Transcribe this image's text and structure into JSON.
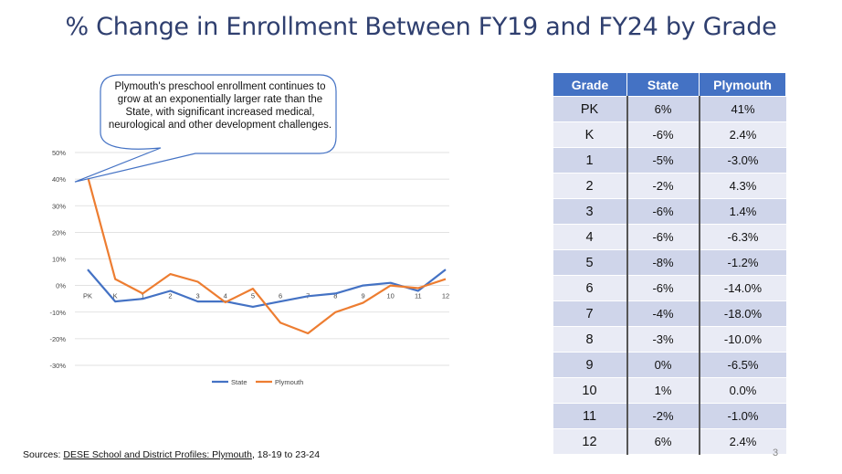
{
  "slide": {
    "title": "% Change in Enrollment Between FY19 and FY24 by Grade",
    "callout": "Plymouth's preschool enrollment continues to grow at an exponentially larger rate than the State, with significant increased medical, neurological and other  development challenges.",
    "source_prefix": "Sources: ",
    "source_link": "DESE School and District Profiles: Plymouth",
    "source_suffix": ", 18-19 to 23-24",
    "page_number": "3"
  },
  "table": {
    "headers": [
      "Grade",
      "State",
      "Plymouth"
    ],
    "rows": [
      [
        "PK",
        "6%",
        "41%"
      ],
      [
        "K",
        "-6%",
        "2.4%"
      ],
      [
        "1",
        "-5%",
        "-3.0%"
      ],
      [
        "2",
        "-2%",
        "4.3%"
      ],
      [
        "3",
        "-6%",
        "1.4%"
      ],
      [
        "4",
        "-6%",
        "-6.3%"
      ],
      [
        "5",
        "-8%",
        "-1.2%"
      ],
      [
        "6",
        "-6%",
        "-14.0%"
      ],
      [
        "7",
        "-4%",
        "-18.0%"
      ],
      [
        "8",
        "-3%",
        "-10.0%"
      ],
      [
        "9",
        "0%",
        "-6.5%"
      ],
      [
        "10",
        "1%",
        "0.0%"
      ],
      [
        "11",
        "-2%",
        "-1.0%"
      ],
      [
        "12",
        "6%",
        "2.4%"
      ]
    ]
  },
  "colors": {
    "state": "#4472c4",
    "plymouth": "#ed7d31",
    "header": "#4472c4"
  },
  "chart_data": {
    "type": "line",
    "categories": [
      "PK",
      "K",
      "1",
      "2",
      "3",
      "4",
      "5",
      "6",
      "7",
      "8",
      "9",
      "10",
      "11",
      "12"
    ],
    "series": [
      {
        "name": "State",
        "values": [
          6,
          -6,
          -5,
          -2,
          -6,
          -6,
          -8,
          -6,
          -4,
          -3,
          0,
          1,
          -2,
          6
        ]
      },
      {
        "name": "Plymouth",
        "values": [
          41,
          2.4,
          -3.0,
          4.3,
          1.4,
          -6.3,
          -1.2,
          -14.0,
          -18.0,
          -10.0,
          -6.5,
          0.0,
          -1.0,
          2.4
        ]
      }
    ],
    "ylim": [
      -30,
      50
    ],
    "yticks": [
      50,
      40,
      30,
      20,
      10,
      0,
      -10,
      -20,
      -30
    ],
    "ytick_labels": [
      "50%",
      "40%",
      "30%",
      "20%",
      "10%",
      "0%",
      "-10%",
      "-20%",
      "-30%"
    ],
    "grid": true,
    "legend": "bottom"
  }
}
